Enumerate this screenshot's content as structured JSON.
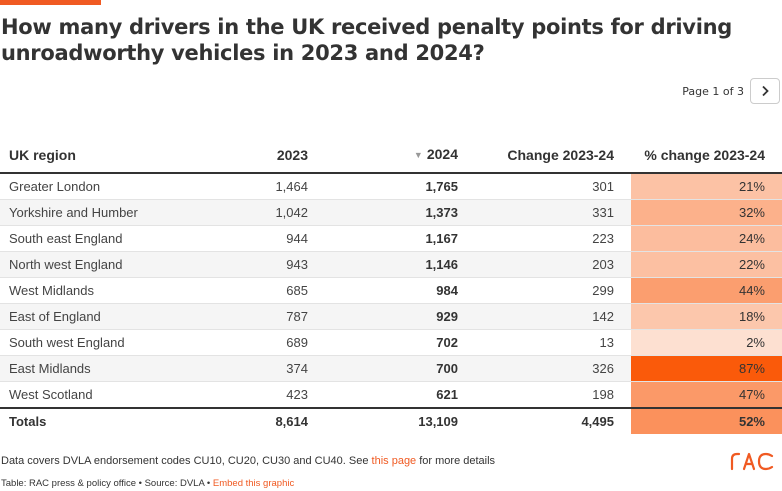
{
  "title": "How many drivers in the UK received penalty points for driving unroadworthy vehicles in 2023 and 2024?",
  "pager": {
    "label": "Page 1 of 3",
    "next_icon": "chevron-right-icon"
  },
  "table": {
    "headers": [
      "UK region",
      "2023",
      "2024",
      "Change 2023-24",
      "% change 2023-24"
    ],
    "sorted_column": "2024",
    "rows": [
      {
        "region": "Greater London",
        "y2023": "1,464",
        "y2024": "1,765",
        "change": "301",
        "pct": "21%",
        "pct_value": 21
      },
      {
        "region": "Yorkshire and Humber",
        "y2023": "1,042",
        "y2024": "1,373",
        "change": "331",
        "pct": "32%",
        "pct_value": 32
      },
      {
        "region": "South east England",
        "y2023": "944",
        "y2024": "1,167",
        "change": "223",
        "pct": "24%",
        "pct_value": 24
      },
      {
        "region": "North west England",
        "y2023": "943",
        "y2024": "1,146",
        "change": "203",
        "pct": "22%",
        "pct_value": 22
      },
      {
        "region": "West Midlands",
        "y2023": "685",
        "y2024": "984",
        "change": "299",
        "pct": "44%",
        "pct_value": 44
      },
      {
        "region": "East of England",
        "y2023": "787",
        "y2024": "929",
        "change": "142",
        "pct": "18%",
        "pct_value": 18
      },
      {
        "region": "South west England",
        "y2023": "689",
        "y2024": "702",
        "change": "13",
        "pct": "2%",
        "pct_value": 2
      },
      {
        "region": "East Midlands",
        "y2023": "374",
        "y2024": "700",
        "change": "326",
        "pct": "87%",
        "pct_value": 87
      },
      {
        "region": "West Scotland",
        "y2023": "423",
        "y2024": "621",
        "change": "198",
        "pct": "47%",
        "pct_value": 47
      }
    ],
    "totals": {
      "label": "Totals",
      "y2023": "8,614",
      "y2024": "13,109",
      "change": "4,495",
      "pct": "52%",
      "pct_value": 52
    }
  },
  "notes": {
    "before_link": "Data covers DVLA endorsement codes CU10, CU20, CU30 and CU40. See ",
    "link_text": "this page",
    "after_link": " for more details"
  },
  "source": {
    "text": "Table: RAC press & policy office • Source: DVLA • ",
    "embed_link": "Embed this graphic"
  },
  "logo": {
    "text": "RAC",
    "icon": "rac-logo-icon"
  },
  "colors": {
    "accent": "#f05a22",
    "heat_low": "#fde3d6",
    "heat_high": "#fa5a0a"
  }
}
